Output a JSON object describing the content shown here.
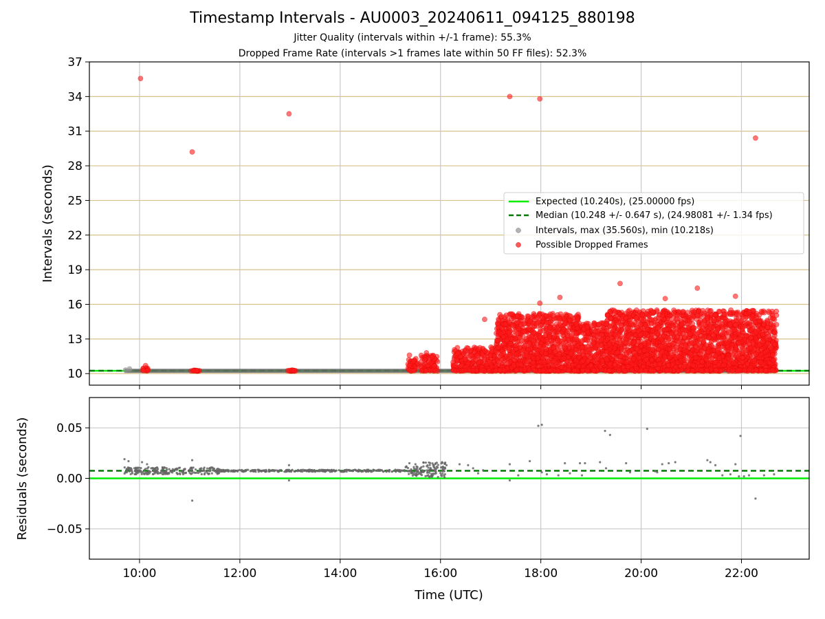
{
  "header": {
    "title": "Timestamp Intervals - AU0003_20240611_094125_880198",
    "subtitle1": "Jitter Quality (intervals within +/-1 frame): 55.3%",
    "subtitle2": "Dropped Frame Rate (intervals >1 frames late within 50 FF files): 52.3%"
  },
  "chart_data": [
    {
      "type": "scatter",
      "ylabel": "Intervals (seconds)",
      "xlabel": "",
      "xlim": [
        9.0,
        23.35
      ],
      "ylim": [
        9.0,
        37.0
      ],
      "y_ticks": [
        10,
        13,
        16,
        19,
        22,
        25,
        28,
        31,
        34,
        37
      ],
      "x_ticks": [
        10,
        12,
        14,
        16,
        18,
        20,
        22
      ],
      "grid": "x-axis gray lines, y-axis tan lines",
      "legend_position": "center-right",
      "legend": [
        {
          "label": "Expected (10.240s), (25.00000 fps)",
          "kind": "line",
          "color": "#00ee00",
          "dash": false
        },
        {
          "label": "Median (10.248 +/- 0.647 s), (24.98081 +/- 1.34 fps)",
          "kind": "line",
          "color": "#007700",
          "dash": true
        },
        {
          "label": "Intervals, max (35.560s), min (10.218s)",
          "kind": "dot",
          "color": "#999999"
        },
        {
          "label": "Possible Dropped Frames",
          "kind": "dot",
          "color": "#ff2222"
        }
      ],
      "expected_line": 10.24,
      "median_line": 10.248,
      "interval_ranges": [
        [
          9.7,
          16.05
        ],
        [
          16.05,
          22.7
        ]
      ],
      "dropped_outliers": [
        {
          "x": 10.02,
          "y": 35.56
        },
        {
          "x": 11.05,
          "y": 29.2
        },
        {
          "x": 12.98,
          "y": 32.5
        },
        {
          "x": 17.38,
          "y": 34.0
        },
        {
          "x": 17.98,
          "y": 33.8
        },
        {
          "x": 22.28,
          "y": 30.4
        },
        {
          "x": 19.58,
          "y": 17.8
        },
        {
          "x": 21.12,
          "y": 17.4
        },
        {
          "x": 21.88,
          "y": 16.7
        },
        {
          "x": 18.38,
          "y": 16.6
        },
        {
          "x": 17.98,
          "y": 16.1
        },
        {
          "x": 20.48,
          "y": 16.5
        },
        {
          "x": 16.88,
          "y": 14.7
        },
        {
          "x": 17.28,
          "y": 14.9
        },
        {
          "x": 15.38,
          "y": 11.6
        },
        {
          "x": 15.72,
          "y": 11.8
        },
        {
          "x": 10.12,
          "y": 10.7
        }
      ],
      "dropped_clusters": [
        {
          "x_range": [
            10.05,
            10.18
          ],
          "y_range": [
            10.22,
            10.5
          ]
        },
        {
          "x_range": [
            11.0,
            11.2
          ],
          "y_range": [
            10.22,
            10.3
          ]
        },
        {
          "x_range": [
            12.95,
            13.15
          ],
          "y_range": [
            10.22,
            10.3
          ]
        },
        {
          "x_range": [
            15.35,
            15.55
          ],
          "y_range": [
            10.22,
            11.3
          ]
        },
        {
          "x_range": [
            15.6,
            15.95
          ],
          "y_range": [
            10.22,
            11.6
          ]
        },
        {
          "x_range": [
            16.25,
            17.1
          ],
          "y_range": [
            10.22,
            12.3
          ]
        },
        {
          "x_range": [
            17.1,
            18.8
          ],
          "y_range": [
            10.22,
            15.2
          ]
        },
        {
          "x_range": [
            18.8,
            19.3
          ],
          "y_range": [
            10.22,
            14.4
          ]
        },
        {
          "x_range": [
            19.3,
            22.7
          ],
          "y_range": [
            10.22,
            15.5
          ]
        }
      ]
    },
    {
      "type": "scatter",
      "xlabel": "Time (UTC)",
      "ylabel": "Residuals (seconds)",
      "xlim": [
        9.0,
        23.35
      ],
      "ylim": [
        -0.08,
        0.08
      ],
      "y_ticks": [
        -0.05,
        0.0,
        0.05
      ],
      "y_tick_labels": [
        "−0.05",
        "0.00",
        "0.05"
      ],
      "x_ticks": [
        10,
        12,
        14,
        16,
        18,
        20,
        22
      ],
      "x_tick_labels": [
        "10:00",
        "12:00",
        "14:00",
        "16:00",
        "18:00",
        "20:00",
        "22:00"
      ],
      "grid": true,
      "expected_line": 0.0,
      "median_line": 0.0075,
      "residual_outliers": [
        {
          "x": 9.7,
          "y": 0.019
        },
        {
          "x": 9.78,
          "y": 0.017
        },
        {
          "x": 10.05,
          "y": 0.016
        },
        {
          "x": 10.15,
          "y": 0.014
        },
        {
          "x": 11.05,
          "y": 0.018
        },
        {
          "x": 11.05,
          "y": -0.022
        },
        {
          "x": 12.98,
          "y": 0.013
        },
        {
          "x": 12.98,
          "y": -0.002
        },
        {
          "x": 15.38,
          "y": 0.015
        },
        {
          "x": 15.5,
          "y": 0.014
        },
        {
          "x": 16.12,
          "y": 0.013
        },
        {
          "x": 16.38,
          "y": 0.014
        },
        {
          "x": 16.55,
          "y": 0.013
        },
        {
          "x": 16.65,
          "y": 0.01
        },
        {
          "x": 16.75,
          "y": 0.005
        },
        {
          "x": 16.85,
          "y": 0.008
        },
        {
          "x": 17.38,
          "y": 0.014
        },
        {
          "x": 17.38,
          "y": -0.002
        },
        {
          "x": 17.55,
          "y": 0.003
        },
        {
          "x": 17.78,
          "y": 0.017
        },
        {
          "x": 17.95,
          "y": 0.052
        },
        {
          "x": 18.02,
          "y": 0.053
        },
        {
          "x": 18.02,
          "y": 0.006
        },
        {
          "x": 18.12,
          "y": 0.004
        },
        {
          "x": 18.35,
          "y": 0.003
        },
        {
          "x": 18.48,
          "y": 0.015
        },
        {
          "x": 18.58,
          "y": 0.005
        },
        {
          "x": 18.78,
          "y": 0.015
        },
        {
          "x": 18.82,
          "y": 0.003
        },
        {
          "x": 18.88,
          "y": 0.015
        },
        {
          "x": 19.18,
          "y": 0.016
        },
        {
          "x": 19.28,
          "y": 0.047
        },
        {
          "x": 19.38,
          "y": 0.043
        },
        {
          "x": 19.3,
          "y": 0.01
        },
        {
          "x": 19.7,
          "y": 0.015
        },
        {
          "x": 19.78,
          "y": 0.006
        },
        {
          "x": 20.12,
          "y": 0.049
        },
        {
          "x": 20.28,
          "y": 0.007
        },
        {
          "x": 20.32,
          "y": 0.006
        },
        {
          "x": 20.42,
          "y": 0.014
        },
        {
          "x": 20.55,
          "y": 0.015
        },
        {
          "x": 20.68,
          "y": 0.016
        },
        {
          "x": 21.32,
          "y": 0.018
        },
        {
          "x": 21.38,
          "y": 0.016
        },
        {
          "x": 21.48,
          "y": 0.013
        },
        {
          "x": 21.62,
          "y": 0.003
        },
        {
          "x": 21.78,
          "y": 0.004
        },
        {
          "x": 21.88,
          "y": 0.014
        },
        {
          "x": 21.98,
          "y": 0.042
        },
        {
          "x": 21.95,
          "y": 0.002
        },
        {
          "x": 22.05,
          "y": 0.002
        },
        {
          "x": 22.15,
          "y": 0.003
        },
        {
          "x": 22.28,
          "y": -0.02
        },
        {
          "x": 22.45,
          "y": 0.003
        },
        {
          "x": 22.65,
          "y": 0.004
        }
      ],
      "residual_clusters": [
        {
          "x_range": [
            9.7,
            11.6
          ],
          "y_range": [
            0.004,
            0.011
          ]
        },
        {
          "x_range": [
            11.6,
            15.3
          ],
          "y_range": [
            0.0065,
            0.0085
          ]
        },
        {
          "x_range": [
            15.3,
            15.65
          ],
          "y_range": [
            0.002,
            0.012
          ]
        },
        {
          "x_range": [
            15.65,
            16.1
          ],
          "y_range": [
            0.001,
            0.017
          ]
        }
      ]
    }
  ]
}
